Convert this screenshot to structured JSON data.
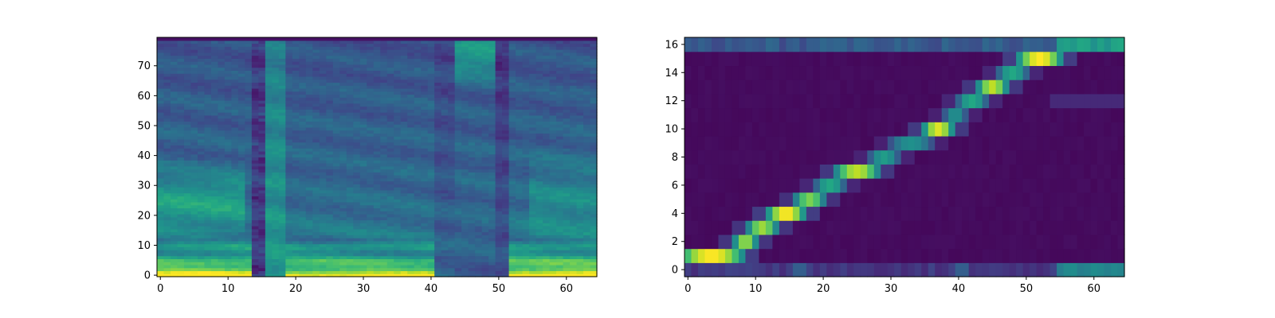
{
  "chart_data": [
    {
      "type": "heatmap",
      "title": "",
      "xlabel": "",
      "ylabel": "",
      "xlim": [
        -0.5,
        64.5
      ],
      "ylim": [
        -0.5,
        79.5
      ],
      "xticks": [
        0,
        10,
        20,
        30,
        40,
        50,
        60
      ],
      "yticks": [
        0,
        10,
        20,
        30,
        40,
        50,
        60,
        70
      ],
      "colormap": "viridis",
      "grid": false,
      "n_frames": 65,
      "n_bins": 80,
      "description_of_values": "mel spectrogram magnitudes (normalized 0-1)",
      "segments": [
        {
          "x_from": 0,
          "x_to": 13,
          "level": "voiced, bright low band (bins 0-12), mid harmonics to ~40"
        },
        {
          "x_from": 14,
          "x_to": 15,
          "level": "dark vertical gap"
        },
        {
          "x_from": 16,
          "x_to": 18,
          "level": "bright vertical stripe"
        },
        {
          "x_from": 19,
          "x_to": 40,
          "level": "voiced, bright low band (bins 0-8)"
        },
        {
          "x_from": 41,
          "x_to": 43,
          "level": "dimmer"
        },
        {
          "x_from": 44,
          "x_to": 49,
          "level": "high-frequency energy (bins 60-80), low band dim"
        },
        {
          "x_from": 50,
          "x_to": 51,
          "level": "dark vertical gap"
        },
        {
          "x_from": 52,
          "x_to": 64,
          "level": "voiced, bright low band (bins 0-15)"
        }
      ]
    },
    {
      "type": "heatmap",
      "title": "",
      "xlabel": "",
      "ylabel": "",
      "xlim": [
        -0.5,
        64.5
      ],
      "ylim": [
        -0.5,
        16.5
      ],
      "xticks": [
        0,
        10,
        20,
        30,
        40,
        50,
        60
      ],
      "yticks": [
        0,
        2,
        4,
        6,
        8,
        10,
        12,
        14,
        16
      ],
      "colormap": "viridis",
      "grid": false,
      "n_frames": 65,
      "n_tokens": 17,
      "description_of_values": "attention alignment weights (0-1)",
      "alignment_path": [
        {
          "y": 1,
          "x_from": 0,
          "x_to": 7,
          "peak": 1.0
        },
        {
          "y": 2,
          "x_from": 8,
          "x_to": 9,
          "peak": 0.85
        },
        {
          "y": 3,
          "x_from": 10,
          "x_to": 12,
          "peak": 0.85
        },
        {
          "y": 4,
          "x_from": 13,
          "x_to": 16,
          "peak": 1.0
        },
        {
          "y": 5,
          "x_from": 17,
          "x_to": 19,
          "peak": 0.8
        },
        {
          "y": 6,
          "x_from": 20,
          "x_to": 22,
          "peak": 0.6
        },
        {
          "y": 7,
          "x_from": 23,
          "x_to": 27,
          "peak": 0.9
        },
        {
          "y": 8,
          "x_from": 28,
          "x_to": 30,
          "peak": 0.55
        },
        {
          "y": 9,
          "x_from": 31,
          "x_to": 35,
          "peak": 0.5
        },
        {
          "y": 10,
          "x_from": 36,
          "x_to": 38,
          "peak": 0.95
        },
        {
          "y": 11,
          "x_from": 39,
          "x_to": 40,
          "peak": 0.5
        },
        {
          "y": 12,
          "x_from": 41,
          "x_to": 43,
          "peak": 0.6
        },
        {
          "y": 13,
          "x_from": 44,
          "x_to": 46,
          "peak": 0.9
        },
        {
          "y": 14,
          "x_from": 47,
          "x_to": 49,
          "peak": 0.6
        },
        {
          "y": 15,
          "x_from": 50,
          "x_to": 54,
          "peak": 1.0
        }
      ],
      "edge_rows": [
        {
          "y": 0,
          "description": "low attention across frames, stronger at x 55-64 (~0.45)"
        },
        {
          "y": 16,
          "description": "moderate attention across frames, stronger at x 55-64 (~0.5)"
        }
      ]
    }
  ]
}
